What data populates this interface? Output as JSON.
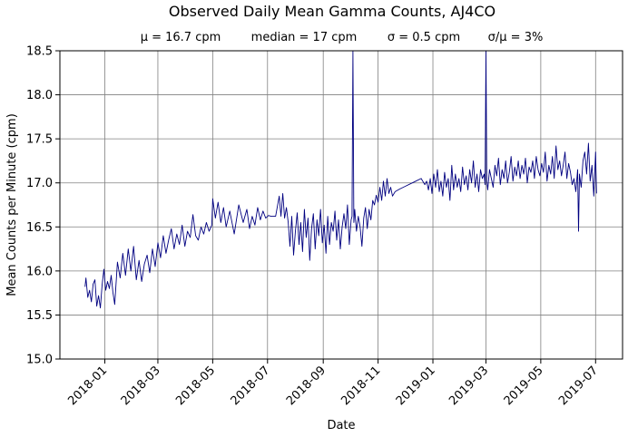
{
  "chart_data": {
    "type": "line",
    "title": "Observed Daily Mean Gamma Counts, AJ4CO",
    "stats": {
      "mean": "μ = 16.7 cpm",
      "median": "median = 17 cpm",
      "sigma": "σ = 0.5 cpm",
      "cv": "σ/μ = 3%"
    },
    "xlabel": "Date",
    "ylabel": "Mean Counts per Minute (cpm)",
    "xlim": [
      "2017-11-12",
      "2019-07-31"
    ],
    "ylim": [
      15.0,
      18.5
    ],
    "grid": true,
    "x_ticks": [
      "2018-01",
      "2018-03",
      "2018-05",
      "2018-07",
      "2018-09",
      "2018-11",
      "2019-01",
      "2019-03",
      "2019-05",
      "2019-07"
    ],
    "y_ticks": [
      "15.0",
      "15.5",
      "16.0",
      "16.5",
      "17.0",
      "17.5",
      "18.0",
      "18.5"
    ],
    "series": [
      {
        "color": "#000080",
        "x": [
          "2017-12-10",
          "2017-12-11",
          "2017-12-13",
          "2017-12-15",
          "2017-12-17",
          "2017-12-19",
          "2017-12-21",
          "2017-12-23",
          "2017-12-25",
          "2017-12-27",
          "2017-12-29",
          "2017-12-31",
          "2018-01-02",
          "2018-01-04",
          "2018-01-06",
          "2018-01-08",
          "2018-01-10",
          "2018-01-12",
          "2018-01-15",
          "2018-01-18",
          "2018-01-21",
          "2018-01-24",
          "2018-01-27",
          "2018-01-30",
          "2018-02-02",
          "2018-02-05",
          "2018-02-08",
          "2018-02-11",
          "2018-02-14",
          "2018-02-17",
          "2018-02-20",
          "2018-02-23",
          "2018-02-26",
          "2018-03-01",
          "2018-03-04",
          "2018-03-07",
          "2018-03-10",
          "2018-03-13",
          "2018-03-16",
          "2018-03-19",
          "2018-03-22",
          "2018-03-25",
          "2018-03-28",
          "2018-03-31",
          "2018-04-03",
          "2018-04-06",
          "2018-04-09",
          "2018-04-12",
          "2018-04-15",
          "2018-04-18",
          "2018-04-21",
          "2018-04-24",
          "2018-04-27",
          "2018-04-30",
          "2018-05-01",
          "2018-05-04",
          "2018-05-07",
          "2018-05-10",
          "2018-05-13",
          "2018-05-16",
          "2018-05-20",
          "2018-05-25",
          "2018-05-30",
          "2018-06-04",
          "2018-06-08",
          "2018-06-11",
          "2018-06-14",
          "2018-06-17",
          "2018-06-20",
          "2018-06-23",
          "2018-06-26",
          "2018-06-29",
          "2018-07-02",
          "2018-07-05",
          "2018-07-10",
          "2018-07-14",
          "2018-07-16",
          "2018-07-18",
          "2018-07-20",
          "2018-07-22",
          "2018-07-24",
          "2018-07-26",
          "2018-07-28",
          "2018-07-30",
          "2018-08-01",
          "2018-08-03",
          "2018-08-05",
          "2018-08-07",
          "2018-08-09",
          "2018-08-11",
          "2018-08-13",
          "2018-08-15",
          "2018-08-17",
          "2018-08-19",
          "2018-08-21",
          "2018-08-23",
          "2018-08-25",
          "2018-08-27",
          "2018-08-29",
          "2018-08-31",
          "2018-09-02",
          "2018-09-04",
          "2018-09-06",
          "2018-09-08",
          "2018-09-10",
          "2018-09-12",
          "2018-09-14",
          "2018-09-16",
          "2018-09-18",
          "2018-09-20",
          "2018-09-22",
          "2018-09-24",
          "2018-09-26",
          "2018-09-28",
          "2018-09-30",
          "2018-10-02",
          "2018-10-03",
          "2018-10-04",
          "2018-10-05",
          "2018-10-06",
          "2018-10-08",
          "2018-10-10",
          "2018-10-12",
          "2018-10-14",
          "2018-10-16",
          "2018-10-18",
          "2018-10-20",
          "2018-10-22",
          "2018-10-24",
          "2018-10-26",
          "2018-10-28",
          "2018-10-30",
          "2018-11-01",
          "2018-11-03",
          "2018-11-05",
          "2018-11-07",
          "2018-11-09",
          "2018-11-11",
          "2018-11-13",
          "2018-11-15",
          "2018-11-17",
          "2018-11-20",
          "2018-11-25",
          "2018-12-01",
          "2018-12-07",
          "2018-12-13",
          "2018-12-19",
          "2018-12-23",
          "2018-12-25",
          "2018-12-27",
          "2018-12-29",
          "2018-12-31",
          "2019-01-02",
          "2019-01-04",
          "2019-01-06",
          "2019-01-08",
          "2019-01-10",
          "2019-01-12",
          "2019-01-14",
          "2019-01-16",
          "2019-01-18",
          "2019-01-20",
          "2019-01-22",
          "2019-01-24",
          "2019-01-26",
          "2019-01-28",
          "2019-01-30",
          "2019-02-01",
          "2019-02-03",
          "2019-02-05",
          "2019-02-07",
          "2019-02-09",
          "2019-02-11",
          "2019-02-13",
          "2019-02-15",
          "2019-02-17",
          "2019-02-19",
          "2019-02-21",
          "2019-02-23",
          "2019-02-25",
          "2019-02-27",
          "2019-02-28",
          "2019-03-01",
          "2019-03-02",
          "2019-03-03",
          "2019-03-05",
          "2019-03-07",
          "2019-03-09",
          "2019-03-11",
          "2019-03-13",
          "2019-03-15",
          "2019-03-17",
          "2019-03-19",
          "2019-03-21",
          "2019-03-23",
          "2019-03-25",
          "2019-03-27",
          "2019-03-29",
          "2019-03-31",
          "2019-04-02",
          "2019-04-04",
          "2019-04-06",
          "2019-04-08",
          "2019-04-10",
          "2019-04-12",
          "2019-04-14",
          "2019-04-16",
          "2019-04-18",
          "2019-04-20",
          "2019-04-22",
          "2019-04-24",
          "2019-04-26",
          "2019-04-28",
          "2019-04-30",
          "2019-05-02",
          "2019-05-04",
          "2019-05-06",
          "2019-05-08",
          "2019-05-10",
          "2019-05-12",
          "2019-05-14",
          "2019-05-16",
          "2019-05-18",
          "2019-05-20",
          "2019-05-22",
          "2019-05-24",
          "2019-05-26",
          "2019-05-28",
          "2019-05-30",
          "2019-06-01",
          "2019-06-03",
          "2019-06-05",
          "2019-06-07",
          "2019-06-09",
          "2019-06-11",
          "2019-06-12",
          "2019-06-13",
          "2019-06-15",
          "2019-06-17",
          "2019-06-19",
          "2019-06-21",
          "2019-06-23",
          "2019-06-25",
          "2019-06-27",
          "2019-06-29",
          "2019-07-01",
          "2019-07-02"
        ],
        "y": [
          15.82,
          15.92,
          15.7,
          15.78,
          15.65,
          15.85,
          15.9,
          15.6,
          15.72,
          15.58,
          15.84,
          16.02,
          15.78,
          15.88,
          15.8,
          15.95,
          15.76,
          15.62,
          16.1,
          15.92,
          16.2,
          15.95,
          16.25,
          16.0,
          16.28,
          15.9,
          16.12,
          15.88,
          16.08,
          16.18,
          15.98,
          16.25,
          16.05,
          16.32,
          16.15,
          16.4,
          16.2,
          16.35,
          16.48,
          16.25,
          16.42,
          16.3,
          16.52,
          16.28,
          16.45,
          16.38,
          16.64,
          16.4,
          16.35,
          16.5,
          16.42,
          16.55,
          16.45,
          16.52,
          16.82,
          16.6,
          16.78,
          16.55,
          16.72,
          16.5,
          16.68,
          16.42,
          16.75,
          16.55,
          16.7,
          16.48,
          16.62,
          16.52,
          16.72,
          16.58,
          16.68,
          16.6,
          16.63,
          16.62,
          16.62,
          16.85,
          16.62,
          16.88,
          16.6,
          16.72,
          16.55,
          16.28,
          16.62,
          16.18,
          16.45,
          16.66,
          16.3,
          16.55,
          16.22,
          16.7,
          16.38,
          16.6,
          16.12,
          16.48,
          16.65,
          16.25,
          16.58,
          16.4,
          16.7,
          16.32,
          16.52,
          16.2,
          16.62,
          16.3,
          16.55,
          16.45,
          16.68,
          16.35,
          16.58,
          16.25,
          16.5,
          16.65,
          16.48,
          16.75,
          16.3,
          16.58,
          16.62,
          18.62,
          16.55,
          16.7,
          16.45,
          16.62,
          16.5,
          16.28,
          16.6,
          16.72,
          16.48,
          16.7,
          16.58,
          16.8,
          16.75,
          16.86,
          16.78,
          16.95,
          16.8,
          17.02,
          16.85,
          17.05,
          16.88,
          16.95,
          16.85,
          16.9,
          16.93,
          16.96,
          16.99,
          17.02,
          17.05,
          16.98,
          17.02,
          16.92,
          17.05,
          16.88,
          17.1,
          16.95,
          17.15,
          16.9,
          17.02,
          16.85,
          17.12,
          16.95,
          17.05,
          16.8,
          17.2,
          16.92,
          17.1,
          16.95,
          17.05,
          16.9,
          17.18,
          16.98,
          17.08,
          16.92,
          17.15,
          17.0,
          17.25,
          16.95,
          17.1,
          16.9,
          17.15,
          17.05,
          17.1,
          16.98,
          18.62,
          17.02,
          16.92,
          17.15,
          17.05,
          16.95,
          17.2,
          17.08,
          17.28,
          16.98,
          17.15,
          17.05,
          17.25,
          17.0,
          17.12,
          17.3,
          17.02,
          17.18,
          17.08,
          17.25,
          17.05,
          17.2,
          17.1,
          17.28,
          17.0,
          17.18,
          17.12,
          17.25,
          17.05,
          17.3,
          17.15,
          17.08,
          17.22,
          17.12,
          17.35,
          17.02,
          17.2,
          17.1,
          17.3,
          17.05,
          17.42,
          17.15,
          17.25,
          17.08,
          17.2,
          17.35,
          17.05,
          17.22,
          17.12,
          16.98,
          17.05,
          16.9,
          17.15,
          16.45,
          17.1,
          16.95,
          17.25,
          17.35,
          17.1,
          17.45,
          17.02,
          17.2,
          16.85,
          17.35,
          16.88
        ]
      }
    ]
  }
}
